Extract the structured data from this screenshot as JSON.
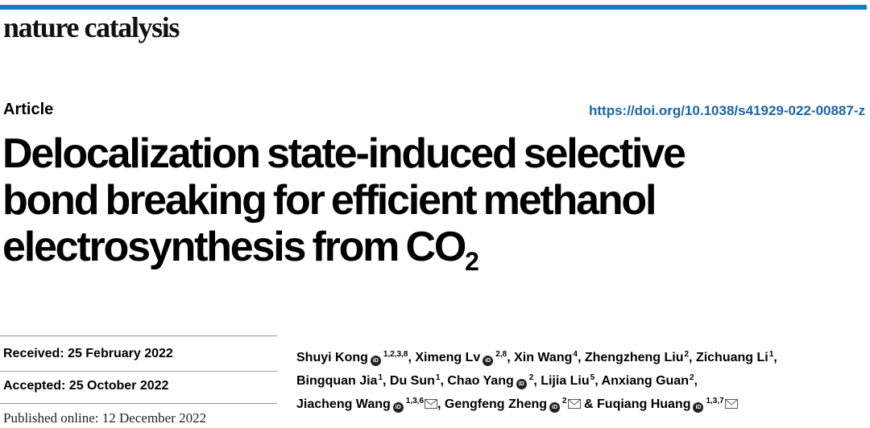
{
  "header": {
    "journal": "nature catalysis"
  },
  "article": {
    "type": "Article",
    "doi": "https://doi.org/10.1038/s41929-022-00887-z",
    "title_lines": [
      "Delocalization state-induced selective",
      "bond breaking for efficient methanol",
      "electrosynthesis from CO"
    ],
    "title_sub": "2"
  },
  "dates": {
    "received": "Received: 25 February 2022",
    "accepted": "Accepted: 25 October 2022",
    "published": "Published online: 12 December 2022"
  },
  "colors": {
    "accent": "#0f7cc3",
    "doi": "#1a66a8"
  },
  "authors": [
    {
      "name": "Shuyi Kong",
      "orcid": true,
      "aff": "1,2,3,8",
      "mail": false,
      "sep": ", "
    },
    {
      "name": "Ximeng Lv",
      "orcid": true,
      "aff": "2,8",
      "mail": false,
      "sep": ", "
    },
    {
      "name": "Xin Wang",
      "orcid": false,
      "aff": "4",
      "mail": false,
      "sep": ", "
    },
    {
      "name": "Zhengzheng Liu",
      "orcid": false,
      "aff": "2",
      "mail": false,
      "sep": ", "
    },
    {
      "name": "Zichuang Li",
      "orcid": false,
      "aff": "1",
      "mail": false,
      "sep": ", "
    },
    {
      "name": "Bingquan Jia",
      "orcid": false,
      "aff": "1",
      "mail": false,
      "sep": ", "
    },
    {
      "name": "Du Sun",
      "orcid": false,
      "aff": "1",
      "mail": false,
      "sep": ", "
    },
    {
      "name": "Chao Yang",
      "orcid": true,
      "aff": "2",
      "mail": false,
      "sep": ", "
    },
    {
      "name": "Lijia Liu",
      "orcid": false,
      "aff": "5",
      "mail": false,
      "sep": ", "
    },
    {
      "name": "Anxiang Guan",
      "orcid": false,
      "aff": "2",
      "mail": false,
      "sep": ", "
    },
    {
      "name": "Jiacheng Wang",
      "orcid": true,
      "aff": "1,3,6",
      "mail": true,
      "sep": ", "
    },
    {
      "name": "Gengfeng Zheng",
      "orcid": true,
      "aff": "2",
      "mail": true,
      "sep": " & "
    },
    {
      "name": "Fuqiang Huang",
      "orcid": true,
      "aff": "1,3,7",
      "mail": true,
      "sep": ""
    }
  ]
}
